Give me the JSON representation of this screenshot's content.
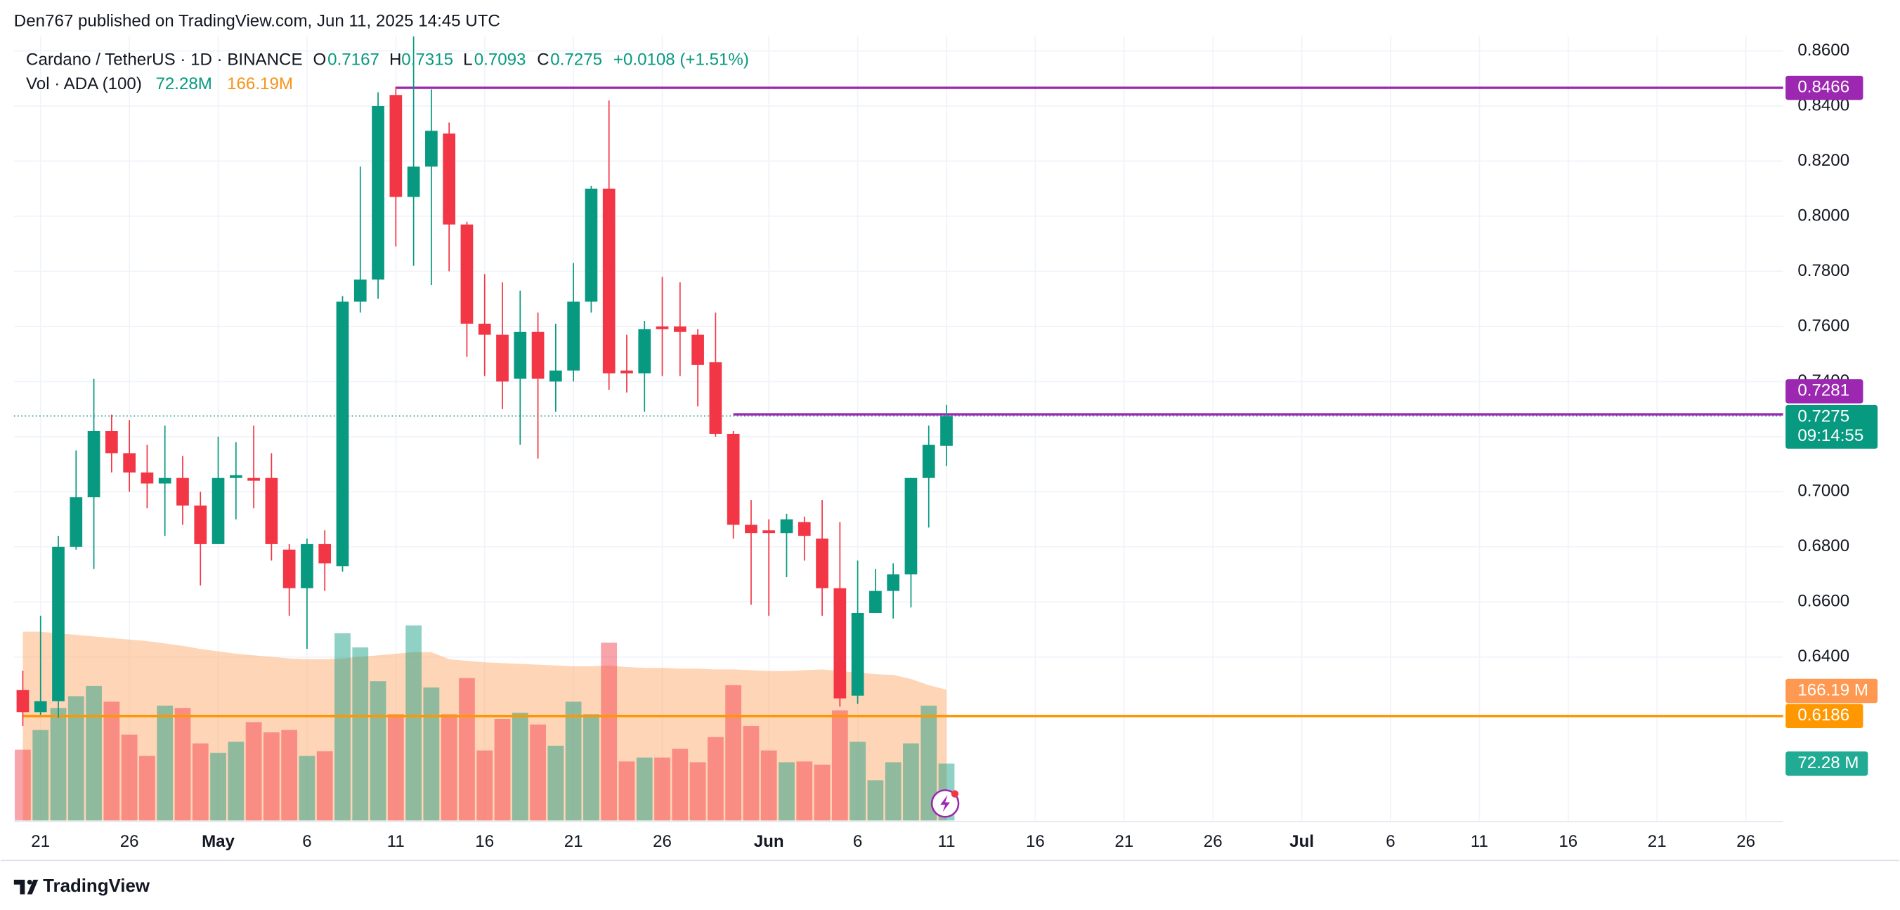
{
  "header": "Den767 published on TradingView.com, Jun 11, 2025 14:45 UTC",
  "footer": "TradingView",
  "chart_data": {
    "type": "candlestick",
    "symbol": "Cardano / TetherUS · 1D · BINANCE",
    "ohlc_letters": {
      "open": "O",
      "high": "H",
      "low": "L",
      "close": "C"
    },
    "change_label": "+0.0108 (+1.51%)",
    "volume_title": "Vol · ADA (100)",
    "volume_labels": {
      "legend": "72.28M",
      "axis": "72.28 M"
    },
    "volume_ma_labels": {
      "legend": "166.19M",
      "axis": "166.19 M"
    },
    "countdown": "09:14:55",
    "open": [
      0.628,
      0.62,
      0.624,
      0.68,
      0.698,
      0.722,
      0.714,
      0.707,
      0.703,
      0.705,
      0.695,
      0.681,
      0.705,
      0.705,
      0.705,
      0.679,
      0.665,
      0.681,
      0.673,
      0.769,
      0.777,
      0.844,
      0.807,
      0.818,
      0.83,
      0.797,
      0.761,
      0.757,
      0.741,
      0.758,
      0.74,
      0.744,
      0.769,
      0.81,
      0.744,
      0.743,
      0.76,
      0.76,
      0.757,
      0.747,
      0.721,
      0.688,
      0.686,
      0.685,
      0.689,
      0.683,
      0.665,
      0.626,
      0.656,
      0.664,
      0.67,
      0.705,
      0.7167
    ],
    "high": [
      0.635,
      0.655,
      0.684,
      0.715,
      0.741,
      0.728,
      0.726,
      0.717,
      0.724,
      0.713,
      0.7,
      0.72,
      0.718,
      0.724,
      0.714,
      0.681,
      0.683,
      0.686,
      0.771,
      0.818,
      0.845,
      0.847,
      0.866,
      0.846,
      0.834,
      0.798,
      0.779,
      0.776,
      0.773,
      0.765,
      0.761,
      0.783,
      0.811,
      0.842,
      0.757,
      0.762,
      0.778,
      0.776,
      0.759,
      0.765,
      0.722,
      0.697,
      0.69,
      0.692,
      0.691,
      0.697,
      0.689,
      0.675,
      0.672,
      0.674,
      0.705,
      0.724,
      0.7315
    ],
    "low": [
      0.615,
      0.619,
      0.618,
      0.679,
      0.672,
      0.707,
      0.7,
      0.694,
      0.684,
      0.688,
      0.666,
      0.681,
      0.69,
      0.694,
      0.675,
      0.655,
      0.643,
      0.664,
      0.671,
      0.765,
      0.77,
      0.789,
      0.782,
      0.775,
      0.78,
      0.749,
      0.742,
      0.73,
      0.717,
      0.712,
      0.729,
      0.74,
      0.765,
      0.737,
      0.736,
      0.729,
      0.742,
      0.742,
      0.731,
      0.72,
      0.683,
      0.659,
      0.655,
      0.669,
      0.675,
      0.655,
      0.622,
      0.623,
      0.656,
      0.654,
      0.658,
      0.687,
      0.7093
    ],
    "close": [
      0.62,
      0.624,
      0.68,
      0.698,
      0.722,
      0.714,
      0.707,
      0.703,
      0.705,
      0.695,
      0.681,
      0.705,
      0.706,
      0.704,
      0.681,
      0.665,
      0.681,
      0.674,
      0.769,
      0.777,
      0.84,
      0.807,
      0.818,
      0.831,
      0.797,
      0.761,
      0.757,
      0.74,
      0.758,
      0.741,
      0.744,
      0.769,
      0.81,
      0.743,
      0.743,
      0.759,
      0.759,
      0.758,
      0.746,
      0.721,
      0.688,
      0.685,
      0.685,
      0.69,
      0.684,
      0.665,
      0.625,
      0.656,
      0.664,
      0.67,
      0.705,
      0.717,
      0.7275
    ],
    "volume": [
      90,
      115,
      143,
      158,
      171,
      151,
      109,
      82,
      146,
      143,
      98,
      86,
      100,
      125,
      112,
      115,
      82,
      88,
      238,
      220,
      177,
      135,
      248,
      169,
      135,
      181,
      89,
      129,
      137,
      122,
      95,
      151,
      135,
      226,
      75,
      80,
      80,
      91,
      74,
      106,
      172,
      120,
      89,
      74,
      75,
      71,
      140,
      100,
      51,
      74,
      98,
      146,
      72.28
    ],
    "volume_ma": [
      240,
      240,
      238,
      236,
      234,
      232,
      230,
      228,
      225,
      222,
      218,
      215,
      212,
      210,
      208,
      206,
      205,
      205,
      206,
      208,
      210,
      212,
      214,
      214,
      205,
      203,
      201,
      200,
      199,
      198,
      197,
      196,
      196,
      197,
      195,
      194,
      194,
      193,
      193,
      192,
      192,
      191,
      190,
      190,
      191,
      192,
      190,
      188,
      186,
      185,
      180,
      172,
      166.19
    ],
    "colors": {
      "up": "#089981",
      "down": "#f23645",
      "ma_area": "#ffab70",
      "ma_label": "#ff9850",
      "volume_text": "#f7931a"
    },
    "lines": [
      {
        "value": 0.8466,
        "start": 21,
        "color": "#9c27b0"
      },
      {
        "value": 0.7281,
        "start": 40,
        "color": "#9c27b0"
      },
      {
        "value": 0.6186,
        "start": 0,
        "color": "#ff9800"
      }
    ],
    "xlim": [
      -0.5,
      99.1
    ],
    "xticks": [
      {
        "value": 1,
        "label": "21"
      },
      {
        "value": 6,
        "label": "26"
      },
      {
        "value": 11,
        "label": "May"
      },
      {
        "value": 16,
        "label": "6"
      },
      {
        "value": 21,
        "label": "11"
      },
      {
        "value": 26,
        "label": "16"
      },
      {
        "value": 31,
        "label": "21"
      },
      {
        "value": 36,
        "label": "26"
      },
      {
        "value": 42,
        "label": "Jun"
      },
      {
        "value": 47,
        "label": "6"
      },
      {
        "value": 52,
        "label": "11"
      },
      {
        "value": 57,
        "label": "16"
      },
      {
        "value": 62,
        "label": "21"
      },
      {
        "value": 67,
        "label": "26"
      },
      {
        "value": 72,
        "label": "Jul"
      },
      {
        "value": 77,
        "label": "6"
      },
      {
        "value": 82,
        "label": "11"
      },
      {
        "value": 87,
        "label": "16"
      },
      {
        "value": 92,
        "label": "21"
      },
      {
        "value": 97,
        "label": "26"
      }
    ],
    "ylim": [
      0.5807,
      0.8653
    ],
    "yticks": [
      {
        "value": 0.64,
        "label": "0.6400"
      },
      {
        "value": 0.66,
        "label": "0.6600"
      },
      {
        "value": 0.68,
        "label": "0.6800"
      },
      {
        "value": 0.7,
        "label": "0.7000"
      },
      {
        "value": 0.72,
        "label": "0.7200"
      },
      {
        "value": 0.74,
        "label": "0.7400"
      },
      {
        "value": 0.76,
        "label": "0.7600"
      },
      {
        "value": 0.78,
        "label": "0.7800"
      },
      {
        "value": 0.8,
        "label": "0.8000"
      },
      {
        "value": 0.82,
        "label": "0.8200"
      },
      {
        "value": 0.84,
        "label": "0.8400"
      },
      {
        "value": 0.86,
        "label": "0.8600"
      }
    ],
    "volume_ylim": [
      0,
      700
    ],
    "grid": true
  }
}
